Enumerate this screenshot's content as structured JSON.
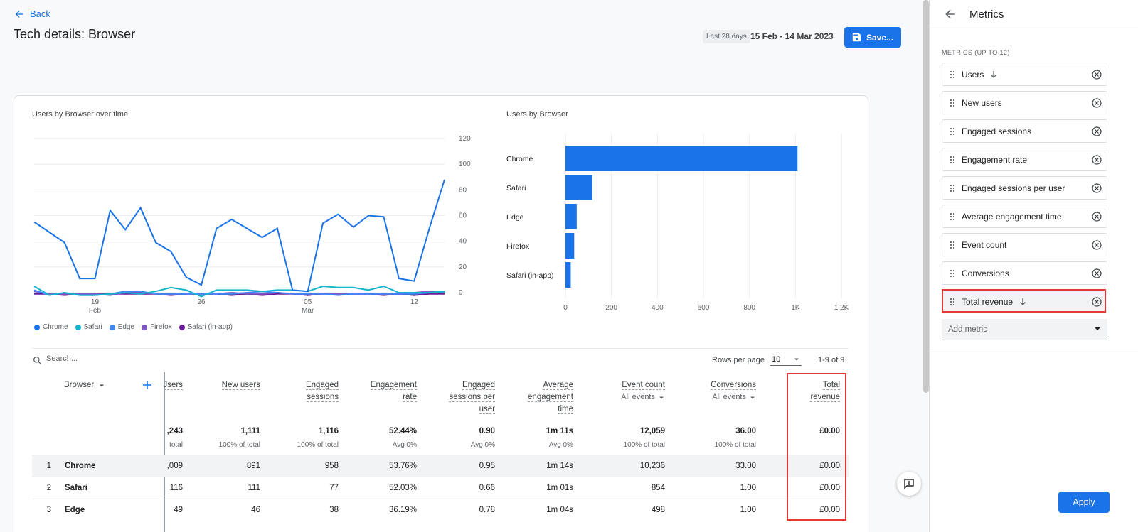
{
  "header": {
    "back_label": "Back",
    "title": "Tech details: Browser",
    "date_chip": "Last 28 days",
    "date_range": "15 Feb - 14 Mar 2023",
    "save_label": "Save..."
  },
  "line_chart": {
    "title": "Users by Browser over time",
    "y_ticks": [
      "120",
      "100",
      "80",
      "60",
      "40",
      "20",
      "0"
    ],
    "x_ticks": [
      {
        "day": "19",
        "month": "Feb"
      },
      {
        "day": "26",
        "month": ""
      },
      {
        "day": "05",
        "month": "Mar"
      },
      {
        "day": "12",
        "month": ""
      }
    ],
    "legend": [
      "Chrome",
      "Safari",
      "Edge",
      "Firefox",
      "Safari (in-app)"
    ]
  },
  "bar_chart": {
    "title": "Users by Browser",
    "x_ticks": [
      "0",
      "200",
      "400",
      "600",
      "800",
      "1K",
      "1.2K"
    ]
  },
  "chart_data": [
    {
      "type": "line",
      "title": "Users by Browser over time",
      "x": [
        "15 Feb",
        "16 Feb",
        "17 Feb",
        "18 Feb",
        "19 Feb",
        "20 Feb",
        "21 Feb",
        "22 Feb",
        "23 Feb",
        "24 Feb",
        "25 Feb",
        "26 Feb",
        "27 Feb",
        "28 Feb",
        "01 Mar",
        "02 Mar",
        "03 Mar",
        "04 Mar",
        "05 Mar",
        "06 Mar",
        "07 Mar",
        "08 Mar",
        "09 Mar",
        "10 Mar",
        "11 Mar",
        "12 Mar",
        "13 Mar",
        "14 Mar"
      ],
      "ylim": [
        0,
        120
      ],
      "series": [
        {
          "name": "Chrome",
          "color": "#1a73e8",
          "values": [
            55,
            47,
            39,
            11,
            11,
            64,
            49,
            66,
            39,
            32,
            12,
            6,
            50,
            57,
            50,
            43,
            50,
            2,
            1,
            54,
            61,
            51,
            60,
            59,
            11,
            9,
            50,
            88
          ]
        },
        {
          "name": "Safari",
          "color": "#12b5cb",
          "values": [
            5,
            -2,
            0,
            -2,
            -2,
            -1,
            0,
            -1,
            1,
            4,
            2,
            -3,
            2,
            2,
            2,
            1,
            2,
            2,
            1,
            5,
            4,
            4,
            2,
            5,
            0,
            0,
            0,
            1
          ]
        },
        {
          "name": "Edge",
          "color": "#4285f4",
          "values": [
            2,
            -2,
            0,
            -2,
            -2,
            -1,
            1,
            1,
            -1,
            -1,
            -1,
            -1,
            -1,
            -1,
            0,
            1,
            0,
            -1,
            -1,
            -1,
            -2,
            -1,
            -1,
            -1,
            -1,
            -1,
            0,
            0
          ]
        },
        {
          "name": "Firefox",
          "color": "#7e57c2",
          "values": [
            1,
            -1,
            -1,
            -1,
            -1,
            -2,
            0,
            0,
            -1,
            -1,
            -1,
            -1,
            -1,
            0,
            -1,
            -1,
            0,
            -1,
            -1,
            -1,
            -1,
            -1,
            -1,
            -1,
            -1,
            0,
            1,
            0
          ]
        },
        {
          "name": "Safari (in-app)",
          "color": "#6a1b9a",
          "values": [
            -1,
            -1,
            -2,
            -1,
            -1,
            -1,
            -1,
            -1,
            -1,
            -2,
            -1,
            -1,
            -1,
            -2,
            -1,
            -2,
            -1,
            -1,
            -2,
            -1,
            -1,
            -1,
            -1,
            -2,
            -1,
            -2,
            -1,
            -1
          ]
        }
      ]
    },
    {
      "type": "bar",
      "orientation": "horizontal",
      "title": "Users by Browser",
      "categories": [
        "Chrome",
        "Safari",
        "Edge",
        "Firefox",
        "Safari (in-app)"
      ],
      "values": [
        1009,
        116,
        49,
        38,
        23
      ],
      "xlim": [
        0,
        1200
      ],
      "color": "#1a73e8"
    }
  ],
  "table": {
    "search_placeholder": "Search...",
    "rows_per_page_label": "Rows per page",
    "rows_per_page_value": "10",
    "page_count": "1-9 of 9",
    "dimension_header": "Browser",
    "columns": [
      {
        "name": "Users",
        "visible_label": "Jsers",
        "sub": "",
        "total": ",243",
        "total_sub": "total"
      },
      {
        "name": "New users",
        "visible_label": "New users",
        "sub": "",
        "total": "1,111",
        "total_sub": "100% of total"
      },
      {
        "name": "Engaged sessions",
        "visible_label": "Engaged sessions",
        "sub": "",
        "total": "1,116",
        "total_sub": "100% of total"
      },
      {
        "name": "Engagement rate",
        "visible_label": "Engagement rate",
        "sub": "",
        "total": "52.44%",
        "total_sub": "Avg 0%"
      },
      {
        "name": "Engaged sessions per user",
        "visible_label": "Engaged sessions per user",
        "sub": "",
        "total": "0.90",
        "total_sub": "Avg 0%"
      },
      {
        "name": "Average engagement time",
        "visible_label": "Average engagement time",
        "sub": "",
        "total": "1m 11s",
        "total_sub": "Avg 0%"
      },
      {
        "name": "Event count",
        "visible_label": "Event count",
        "sub": "All events",
        "total": "12,059",
        "total_sub": "100% of total"
      },
      {
        "name": "Conversions",
        "visible_label": "Conversions",
        "sub": "All events",
        "total": "36.00",
        "total_sub": "100% of total"
      },
      {
        "name": "Total revenue",
        "visible_label": "Total revenue",
        "sub": "",
        "total": "£0.00",
        "total_sub": ""
      }
    ],
    "rows": [
      {
        "idx": "1",
        "browser": "Chrome",
        "values": [
          ",009",
          "891",
          "958",
          "53.76%",
          "0.95",
          "1m 14s",
          "10,236",
          "33.00",
          "£0.00"
        ]
      },
      {
        "idx": "2",
        "browser": "Safari",
        "values": [
          "116",
          "111",
          "77",
          "52.03%",
          "0.66",
          "1m 01s",
          "854",
          "1.00",
          "£0.00"
        ]
      },
      {
        "idx": "3",
        "browser": "Edge",
        "values": [
          "49",
          "46",
          "38",
          "36.19%",
          "0.78",
          "1m 04s",
          "498",
          "1.00",
          "£0.00"
        ]
      }
    ]
  },
  "panel": {
    "title": "Metrics",
    "section_label": "METRICS (UP TO 12)",
    "metrics": [
      {
        "label": "Users",
        "sorted": true,
        "highlighted": false
      },
      {
        "label": "New users",
        "sorted": false,
        "highlighted": false
      },
      {
        "label": "Engaged sessions",
        "sorted": false,
        "highlighted": false
      },
      {
        "label": "Engagement rate",
        "sorted": false,
        "highlighted": false
      },
      {
        "label": "Engaged sessions per user",
        "sorted": false,
        "highlighted": false
      },
      {
        "label": "Average engagement time",
        "sorted": false,
        "highlighted": false
      },
      {
        "label": "Event count",
        "sorted": false,
        "highlighted": false
      },
      {
        "label": "Conversions",
        "sorted": false,
        "highlighted": false
      },
      {
        "label": "Total revenue",
        "sorted": true,
        "highlighted": true
      }
    ],
    "add_metric_placeholder": "Add metric",
    "apply_label": "Apply"
  },
  "colors": {
    "accent": "#1a73e8",
    "highlight": "#e53935"
  }
}
